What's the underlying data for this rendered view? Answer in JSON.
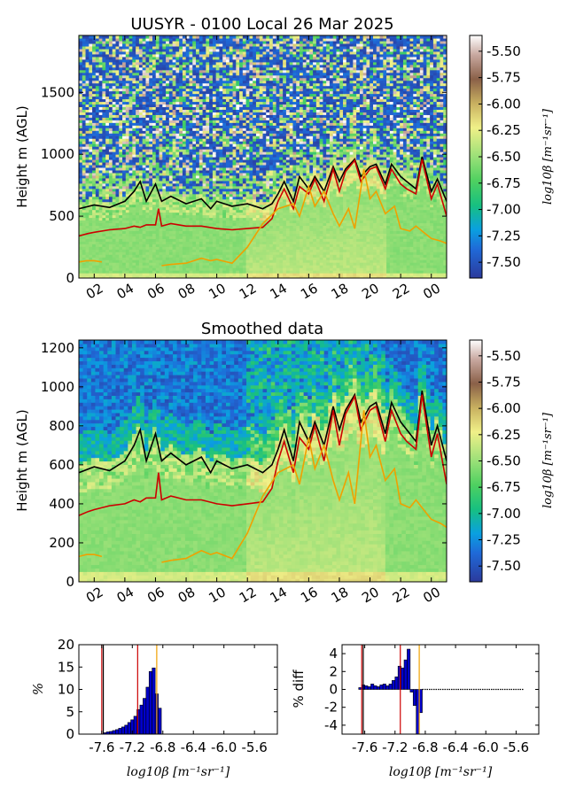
{
  "chart_data": [
    {
      "type": "heatmap",
      "title": "UUSYR - 0100 Local 26 Mar 2025",
      "ylabel": "Height m (AGL)",
      "xlabel": "",
      "x_ticklabels": [
        "02",
        "04",
        "06",
        "08",
        "10",
        "12",
        "14",
        "16",
        "18",
        "20",
        "22",
        "00"
      ],
      "x_tick_hours": [
        2,
        4,
        6,
        8,
        10,
        12,
        14,
        16,
        18,
        20,
        22,
        24
      ],
      "xlim_hours": [
        1.0,
        25.0
      ],
      "y_ticks": [
        0,
        500,
        1000,
        1500
      ],
      "ylim": [
        0,
        1960
      ],
      "colorbar": {
        "label": "log10β [m⁻¹sr⁻¹]",
        "ticks": [
          "-5.50",
          "-5.75",
          "-6.00",
          "-6.25",
          "-6.50",
          "-6.75",
          "-7.00",
          "-7.25",
          "-7.50"
        ],
        "range": [
          -7.65,
          -5.35
        ]
      },
      "series": [
        {
          "color": "#000000",
          "x_hours": [
            1.0,
            2.0,
            3.0,
            4.0,
            4.6,
            5.0,
            5.4,
            6.0,
            6.4,
            7.0,
            8.0,
            9.0,
            9.6,
            10.0,
            11.0,
            12.0,
            13.0,
            13.6,
            14.0,
            14.4,
            15.0,
            15.4,
            16.0,
            16.4,
            17.0,
            17.6,
            18.0,
            18.4,
            19.0,
            19.4,
            20.0,
            20.4,
            21.0,
            21.4,
            22.0,
            22.4,
            23.0,
            23.4,
            24.0,
            24.4,
            25.0
          ],
          "values": [
            560,
            590,
            570,
            620,
            700,
            780,
            620,
            760,
            620,
            660,
            600,
            640,
            560,
            620,
            580,
            600,
            560,
            600,
            680,
            780,
            620,
            820,
            720,
            820,
            700,
            900,
            780,
            880,
            960,
            820,
            900,
            920,
            760,
            920,
            820,
            780,
            720,
            980,
            700,
            800,
            620
          ]
        },
        {
          "color": "#cc0000",
          "x_hours": [
            1.0,
            1.6,
            2.0,
            3.0,
            4.0,
            4.6,
            5.0,
            5.4,
            6.0,
            6.2,
            6.4,
            7.0,
            8.0,
            9.0,
            10.0,
            11.0,
            12.0,
            13.0,
            13.6,
            14.0,
            14.4,
            15.0,
            15.4,
            16.0,
            16.4,
            17.0,
            17.6,
            18.0,
            18.4,
            19.0,
            19.4,
            20.0,
            20.4,
            21.0,
            21.4,
            22.0,
            22.4,
            23.0,
            23.4,
            24.0,
            24.4,
            25.0
          ],
          "values": [
            340,
            360,
            370,
            390,
            400,
            420,
            410,
            430,
            430,
            560,
            420,
            440,
            420,
            420,
            400,
            390,
            400,
            410,
            480,
            620,
            720,
            560,
            740,
            680,
            800,
            620,
            880,
            700,
            860,
            950,
            780,
            880,
            900,
            720,
            880,
            760,
            720,
            680,
            960,
            640,
            760,
            500
          ]
        },
        {
          "color": "#f0a000",
          "x_hours": [
            1.0,
            1.5,
            2.0,
            2.5,
            6.0,
            6.4,
            7.0,
            8.0,
            9.0,
            9.6,
            10.0,
            11.0,
            12.0,
            13.0,
            14.0,
            15.0,
            15.4,
            16.0,
            16.4,
            17.0,
            17.6,
            18.0,
            18.6,
            19.0,
            19.6,
            20.0,
            20.4,
            21.0,
            21.6,
            22.0,
            22.6,
            23.0,
            23.6,
            24.0,
            24.6,
            25.0
          ],
          "values": [
            130,
            140,
            140,
            130,
            null,
            100,
            110,
            120,
            160,
            140,
            150,
            120,
            250,
            440,
            560,
            600,
            500,
            740,
            580,
            700,
            520,
            420,
            560,
            400,
            880,
            640,
            700,
            520,
            580,
            400,
            380,
            420,
            360,
            320,
            300,
            280
          ]
        }
      ]
    },
    {
      "type": "heatmap",
      "title": "Smoothed data",
      "ylabel": "Height m (AGL)",
      "xlabel": "",
      "x_ticklabels": [
        "02",
        "04",
        "06",
        "08",
        "10",
        "12",
        "14",
        "16",
        "18",
        "20",
        "22",
        "00"
      ],
      "x_tick_hours": [
        2,
        4,
        6,
        8,
        10,
        12,
        14,
        16,
        18,
        20,
        22,
        24
      ],
      "xlim_hours": [
        1.0,
        25.0
      ],
      "y_ticks": [
        0,
        200,
        400,
        600,
        800,
        1000,
        1200
      ],
      "ylim": [
        0,
        1240
      ],
      "colorbar": {
        "label": "log10β [m⁻¹sr⁻¹]",
        "ticks": [
          "-5.50",
          "-5.75",
          "-6.00",
          "-6.25",
          "-6.50",
          "-6.75",
          "-7.00",
          "-7.25",
          "-7.50"
        ],
        "range": [
          -7.65,
          -5.35
        ]
      }
    },
    {
      "type": "bar",
      "title": "",
      "ylabel": "%",
      "xlabel": "log10β [m⁻¹sr⁻¹]",
      "x_ticklabels": [
        "-7.6",
        "-7.2",
        "-6.8",
        "-6.4",
        "-6.0",
        "-5.6"
      ],
      "xlim": [
        -7.9,
        -5.3
      ],
      "ylim": [
        0,
        20
      ],
      "y_ticks": [
        0,
        5,
        10,
        15,
        20
      ],
      "bin_width": 0.04,
      "x": [
        -7.56,
        -7.52,
        -7.48,
        -7.44,
        -7.4,
        -7.36,
        -7.32,
        -7.28,
        -7.24,
        -7.2,
        -7.16,
        -7.12,
        -7.08,
        -7.04,
        -7.0,
        -6.96,
        -6.92,
        -6.88,
        -6.84
      ],
      "values": [
        0.3,
        0.5,
        0.6,
        0.8,
        1.0,
        1.3,
        1.6,
        2.0,
        2.6,
        3.2,
        4.0,
        5.5,
        6.5,
        8.0,
        10.5,
        14.0,
        14.8,
        9.0,
        5.8
      ],
      "vlines": [
        {
          "x": -7.58,
          "color": "#000000"
        },
        {
          "x": -7.6,
          "color": "#cc0000"
        },
        {
          "x": -7.13,
          "color": "#cc0000"
        },
        {
          "x": -6.88,
          "color": "#f0a000"
        }
      ]
    },
    {
      "type": "bar",
      "title": "",
      "ylabel": "% diff",
      "xlabel": "log10β [m⁻¹sr⁻¹]",
      "x_ticklabels": [
        "-7.6",
        "-7.2",
        "-6.8",
        "-6.4",
        "-6.0",
        "-5.6"
      ],
      "xlim": [
        -7.9,
        -5.3
      ],
      "ylim": [
        -5,
        5
      ],
      "y_ticks": [
        -4,
        -2,
        0,
        2,
        4
      ],
      "bin_width": 0.04,
      "x": [
        -7.66,
        -7.62,
        -7.58,
        -7.54,
        -7.5,
        -7.46,
        -7.42,
        -7.38,
        -7.34,
        -7.3,
        -7.26,
        -7.22,
        -7.18,
        -7.14,
        -7.1,
        -7.06,
        -7.02,
        -6.98,
        -6.94,
        -6.9,
        -6.86
      ],
      "values": [
        0.2,
        0.5,
        0.4,
        0.3,
        0.6,
        0.4,
        0.3,
        0.5,
        0.6,
        0.4,
        0.6,
        1.0,
        1.4,
        2.6,
        2.4,
        3.3,
        4.5,
        -0.3,
        -1.8,
        -5.0,
        -2.6
      ],
      "vlines": [
        {
          "x": -7.62,
          "color": "#000000"
        },
        {
          "x": -7.64,
          "color": "#cc0000"
        },
        {
          "x": -7.13,
          "color": "#cc0000"
        },
        {
          "x": -6.88,
          "color": "#f0a000"
        }
      ]
    }
  ]
}
